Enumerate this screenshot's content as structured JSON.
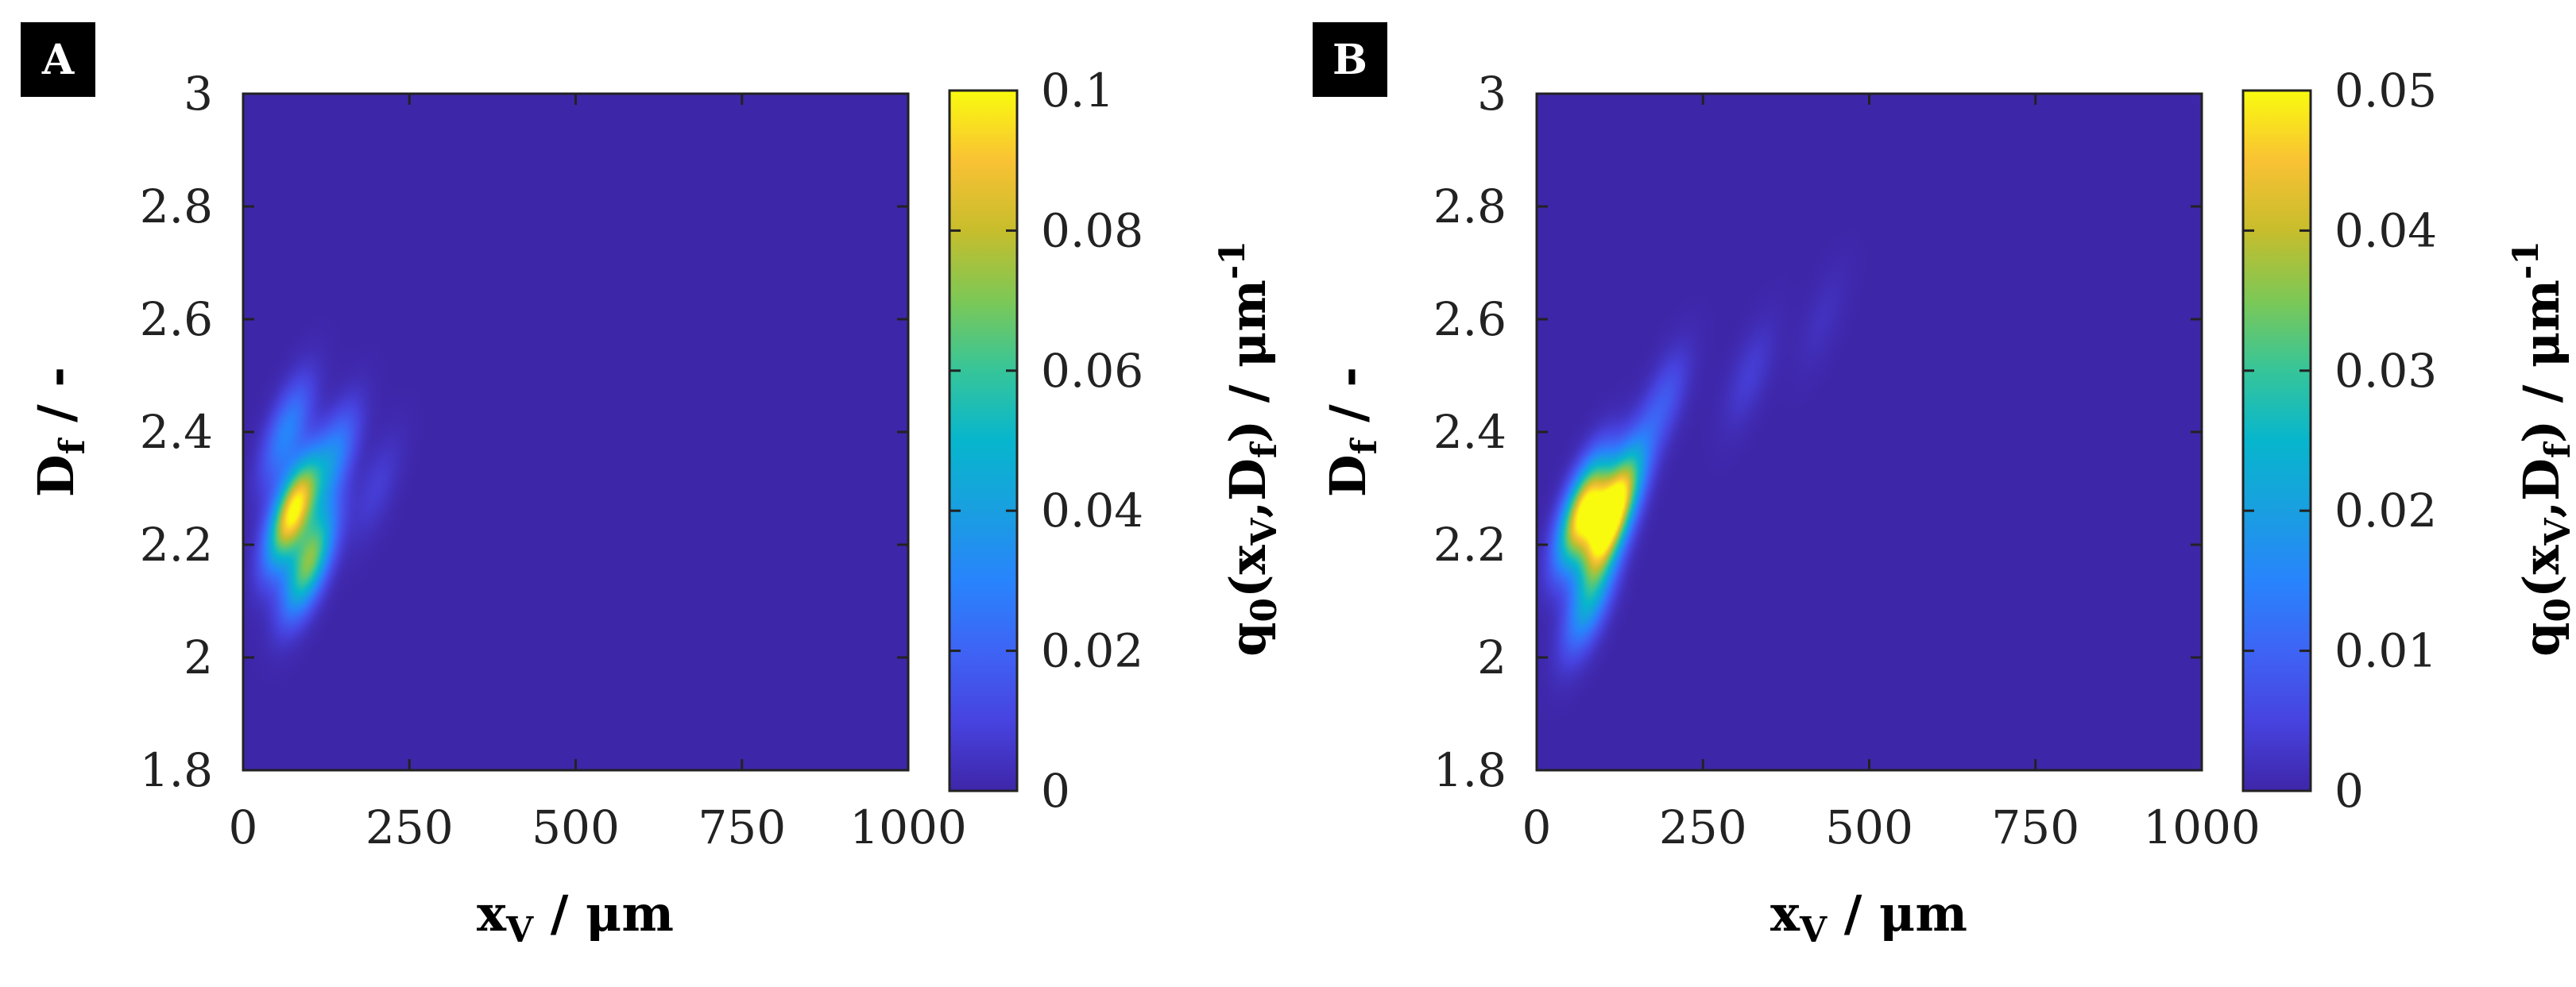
{
  "chart_data": [
    {
      "type": "heatmap",
      "panel_label": "A",
      "title": "",
      "xlabel_main": "x",
      "xlabel_sub": "V",
      "xlabel_unit": " / μm",
      "ylabel_main": "D",
      "ylabel_sub": "f",
      "ylabel_unit": " / -",
      "xlim": [
        0,
        1000
      ],
      "ylim": [
        1.8,
        3.0
      ],
      "xticks": [
        0,
        250,
        500,
        750,
        1000
      ],
      "xtick_labels": [
        "0",
        "250",
        "500",
        "750",
        "1000"
      ],
      "yticks": [
        1.8,
        2.0,
        2.2,
        2.4,
        2.6,
        2.8,
        3.0
      ],
      "ytick_labels": [
        "1.8",
        "2",
        "2.2",
        "2.4",
        "2.6",
        "2.8",
        "3"
      ],
      "colorbar": {
        "label_main": "q",
        "label_sub0": "0",
        "label_mid": "(x",
        "label_sub1": "V",
        "label_comma": ",D",
        "label_sub2": "f",
        "label_tail": ") / μm",
        "label_sup": "-1",
        "min": 0,
        "max": 0.1,
        "ticks": [
          0,
          0.02,
          0.04,
          0.06,
          0.08,
          0.1
        ],
        "tick_labels": [
          "0",
          "0.02",
          "0.04",
          "0.06",
          "0.08",
          "0.1"
        ]
      },
      "peaks": [
        {
          "x": 75,
          "y": 2.26,
          "value": 0.1
        },
        {
          "x": 100,
          "y": 2.17,
          "value": 0.07
        },
        {
          "x": 65,
          "y": 2.4,
          "value": 0.03
        },
        {
          "x": 135,
          "y": 2.35,
          "value": 0.03
        },
        {
          "x": 200,
          "y": 2.3,
          "value": 0.008
        }
      ]
    },
    {
      "type": "heatmap",
      "panel_label": "B",
      "title": "",
      "xlabel_main": "x",
      "xlabel_sub": "V",
      "xlabel_unit": " / μm",
      "ylabel_main": "D",
      "ylabel_sub": "f",
      "ylabel_unit": " / -",
      "xlim": [
        0,
        1000
      ],
      "ylim": [
        1.8,
        3.0
      ],
      "xticks": [
        0,
        250,
        500,
        750,
        1000
      ],
      "xtick_labels": [
        "0",
        "250",
        "500",
        "750",
        "1000"
      ],
      "yticks": [
        1.8,
        2.0,
        2.2,
        2.4,
        2.6,
        2.8,
        3.0
      ],
      "ytick_labels": [
        "1.8",
        "2",
        "2.2",
        "2.4",
        "2.6",
        "2.8",
        "3"
      ],
      "colorbar": {
        "label_main": "q",
        "label_sub0": "0",
        "label_mid": "(x",
        "label_sub1": "V",
        "label_comma": ",D",
        "label_sub2": "f",
        "label_tail": ") / μm",
        "label_sup": "-1",
        "min": 0,
        "max": 0.05,
        "ticks": [
          0,
          0.01,
          0.02,
          0.03,
          0.04,
          0.05
        ],
        "tick_labels": [
          "0",
          "0.01",
          "0.02",
          "0.03",
          "0.04",
          "0.05"
        ]
      },
      "peaks": [
        {
          "x": 70,
          "y": 2.26,
          "value": 0.05
        },
        {
          "x": 105,
          "y": 2.23,
          "value": 0.045
        },
        {
          "x": 130,
          "y": 2.3,
          "value": 0.025
        },
        {
          "x": 80,
          "y": 2.1,
          "value": 0.02
        },
        {
          "x": 190,
          "y": 2.45,
          "value": 0.008
        },
        {
          "x": 320,
          "y": 2.5,
          "value": 0.004
        },
        {
          "x": 430,
          "y": 2.6,
          "value": 0.002
        }
      ]
    }
  ]
}
